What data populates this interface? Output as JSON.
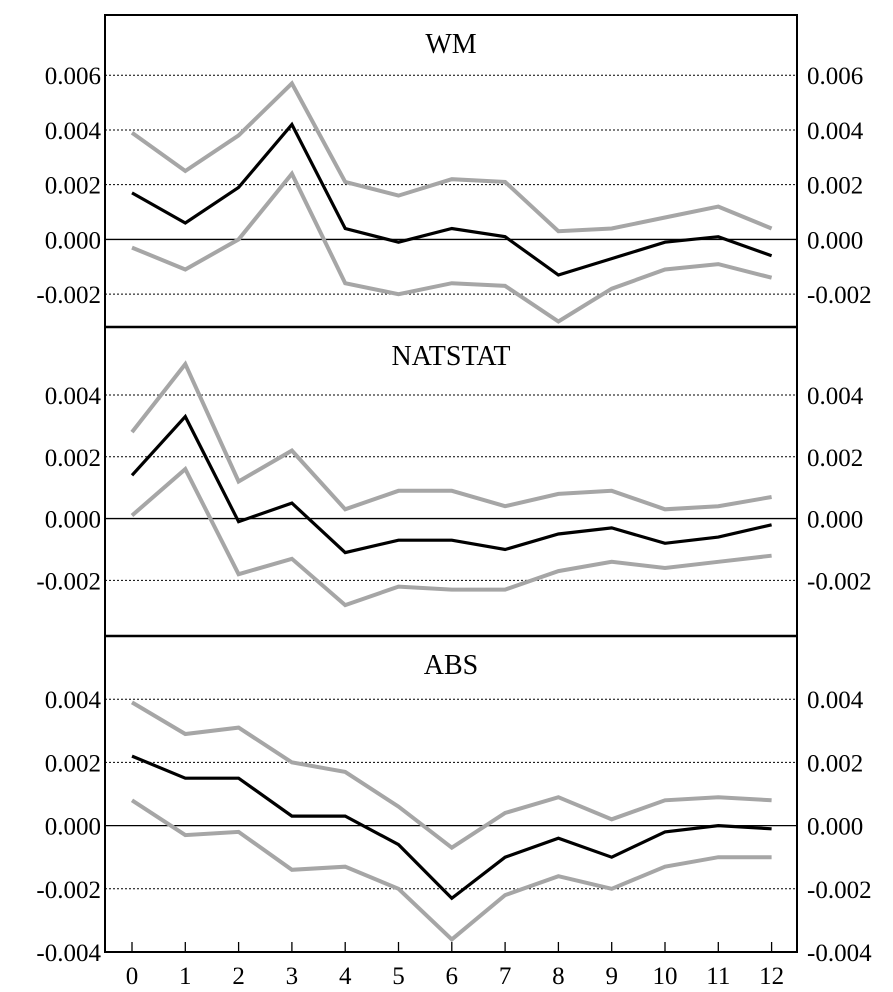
{
  "chart_data": {
    "type": "line",
    "x": [
      0,
      1,
      2,
      3,
      4,
      5,
      6,
      7,
      8,
      9,
      10,
      11,
      12
    ],
    "colors": {
      "estimate": "#000000",
      "bands": "#a6a6a6"
    },
    "panels": [
      {
        "title": "WM",
        "ylim": [
          -0.0032,
          0.0082
        ],
        "yticks": [
          -0.002,
          0.0,
          0.002,
          0.004,
          0.006
        ],
        "ytick_labels": [
          "-0.002",
          "0.000",
          "0.002",
          "0.004",
          "0.006"
        ],
        "series": [
          {
            "role": "upper",
            "values": [
              0.0039,
              0.0025,
              0.0038,
              0.0057,
              0.0021,
              0.0016,
              0.0022,
              0.0021,
              0.0003,
              0.0004,
              0.0008,
              0.0012,
              0.0004
            ]
          },
          {
            "role": "estimate",
            "values": [
              0.0017,
              0.0006,
              0.0019,
              0.0042,
              0.0004,
              -0.0001,
              0.0004,
              0.0001,
              -0.0013,
              -0.0007,
              -0.0001,
              0.0001,
              -0.0006
            ]
          },
          {
            "role": "lower",
            "values": [
              -0.0003,
              -0.0011,
              0.0,
              0.0024,
              -0.0016,
              -0.002,
              -0.0016,
              -0.0017,
              -0.003,
              -0.0018,
              -0.0011,
              -0.0009,
              -0.0014
            ]
          }
        ]
      },
      {
        "title": "NATSTAT",
        "ylim": [
          -0.0038,
          0.0062
        ],
        "yticks": [
          -0.002,
          0.0,
          0.002,
          0.004
        ],
        "ytick_labels": [
          "-0.002",
          "0.000",
          "0.002",
          "0.004"
        ],
        "series": [
          {
            "role": "upper",
            "values": [
              0.0028,
              0.005,
              0.0012,
              0.0022,
              0.0003,
              0.0009,
              0.0009,
              0.0004,
              0.0008,
              0.0009,
              0.0003,
              0.0004,
              0.0007
            ]
          },
          {
            "role": "estimate",
            "values": [
              0.0014,
              0.0033,
              -0.0001,
              0.0005,
              -0.0011,
              -0.0007,
              -0.0007,
              -0.001,
              -0.0005,
              -0.0003,
              -0.0008,
              -0.0006,
              -0.0002
            ]
          },
          {
            "role": "lower",
            "values": [
              0.0001,
              0.0016,
              -0.0018,
              -0.0013,
              -0.0028,
              -0.0022,
              -0.0023,
              -0.0023,
              -0.0017,
              -0.0014,
              -0.0016,
              -0.0014,
              -0.0012
            ]
          }
        ]
      },
      {
        "title": "ABS",
        "ylim": [
          -0.004,
          0.006
        ],
        "yticks": [
          -0.004,
          -0.002,
          0.0,
          0.002,
          0.004
        ],
        "ytick_labels": [
          "-0.004",
          "-0.002",
          "0.000",
          "0.002",
          "0.004"
        ],
        "series": [
          {
            "role": "upper",
            "values": [
              0.0039,
              0.0029,
              0.0031,
              0.002,
              0.0017,
              0.0006,
              -0.0007,
              0.0004,
              0.0009,
              0.0002,
              0.0008,
              0.0009,
              0.0008
            ]
          },
          {
            "role": "estimate",
            "values": [
              0.0022,
              0.0015,
              0.0015,
              0.0003,
              0.0003,
              -0.0006,
              -0.0023,
              -0.001,
              -0.0004,
              -0.001,
              -0.0002,
              0.0,
              -0.0001
            ]
          },
          {
            "role": "lower",
            "values": [
              0.0008,
              -0.0003,
              -0.0002,
              -0.0014,
              -0.0013,
              -0.002,
              -0.0036,
              -0.0022,
              -0.0016,
              -0.002,
              -0.0013,
              -0.001,
              -0.001
            ]
          }
        ]
      }
    ],
    "xtick_labels": [
      "0",
      "1",
      "2",
      "3",
      "4",
      "5",
      "6",
      "7",
      "8",
      "9",
      "10",
      "11",
      "12"
    ],
    "grid": true,
    "right_axis_duplicate": true
  }
}
